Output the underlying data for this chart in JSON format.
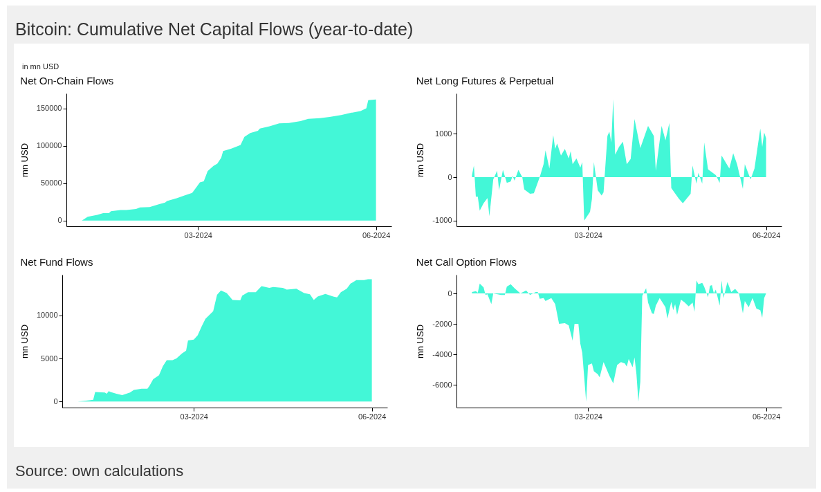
{
  "chart_data": [
    {
      "type": "other",
      "title": "Bitcoin: Cumulative Net Capital Flows (year-to-date)",
      "subtitle": "in mn USD",
      "annotations": [
        "Source: own calculations"
      ]
    },
    {
      "type": "area",
      "title": "Net On-Chain Flows",
      "ylabel": "mn USD",
      "color": "#43f7d7",
      "xlim": [
        "2023-12-24",
        "2024-06-09"
      ],
      "xticks": [
        {
          "value": "2024-03-01",
          "label": "03-2024"
        },
        {
          "value": "2024-06-01",
          "label": "06-2024"
        }
      ],
      "ylim": [
        -7700,
        170000
      ],
      "yticks": [
        0,
        50000,
        100000,
        150000
      ],
      "x": [
        "2024-01-01",
        "2024-01-04",
        "2024-01-09",
        "2024-01-12",
        "2024-01-15",
        "2024-01-16",
        "2024-01-21",
        "2024-01-24",
        "2024-01-29",
        "2024-01-31",
        "2024-02-05",
        "2024-02-10",
        "2024-02-13",
        "2024-02-14",
        "2024-02-18",
        "2024-02-23",
        "2024-02-27",
        "2024-02-29",
        "2024-03-02",
        "2024-03-04",
        "2024-03-06",
        "2024-03-09",
        "2024-03-11",
        "2024-03-13",
        "2024-03-14",
        "2024-03-18",
        "2024-03-21",
        "2024-03-23",
        "2024-03-25",
        "2024-03-28",
        "2024-04-01",
        "2024-04-02",
        "2024-04-07",
        "2024-04-12",
        "2024-04-17",
        "2024-04-23",
        "2024-04-27",
        "2024-05-03",
        "2024-05-08",
        "2024-05-14",
        "2024-05-19",
        "2024-05-24",
        "2024-05-27",
        "2024-05-28",
        "2024-06-01"
      ],
      "values": [
        0,
        5000,
        7500,
        10000,
        10000,
        12500,
        14000,
        14000,
        15500,
        17500,
        18000,
        22000,
        24000,
        26000,
        29000,
        33500,
        37000,
        44000,
        51000,
        52500,
        66000,
        73000,
        76000,
        84000,
        93000,
        96000,
        99000,
        101000,
        112000,
        117000,
        120000,
        123000,
        126000,
        130000,
        130500,
        133000,
        136000,
        137000,
        138500,
        141000,
        144000,
        146500,
        150000,
        161000,
        162000
      ]
    },
    {
      "type": "area",
      "title": "Net Long Futures & Perpetual",
      "ylabel": "mn USD",
      "color": "#43f7d7",
      "xlim": [
        "2023-12-24",
        "2024-06-09"
      ],
      "xticks": [
        {
          "value": "2024-03-01",
          "label": "03-2024"
        },
        {
          "value": "2024-06-01",
          "label": "06-2024"
        }
      ],
      "ylim": [
        -1130,
        1930
      ],
      "yticks": [
        -1000,
        0,
        1000
      ],
      "x": [
        "2024-01-01",
        "2024-01-02",
        "2024-01-03",
        "2024-01-04",
        "2024-01-05",
        "2024-01-07",
        "2024-01-09",
        "2024-01-10",
        "2024-01-12",
        "2024-01-14",
        "2024-01-15",
        "2024-01-17",
        "2024-01-19",
        "2024-01-21",
        "2024-01-22",
        "2024-01-23",
        "2024-01-25",
        "2024-01-27",
        "2024-01-28",
        "2024-01-31",
        "2024-02-02",
        "2024-02-05",
        "2024-02-07",
        "2024-02-08",
        "2024-02-10",
        "2024-02-12",
        "2024-02-13",
        "2024-02-14",
        "2024-02-16",
        "2024-02-18",
        "2024-02-20",
        "2024-02-21",
        "2024-02-22",
        "2024-02-24",
        "2024-02-26",
        "2024-02-27",
        "2024-02-28",
        "2024-03-02",
        "2024-03-03",
        "2024-03-04",
        "2024-03-06",
        "2024-03-08",
        "2024-03-09",
        "2024-03-11",
        "2024-03-12",
        "2024-03-13",
        "2024-03-14",
        "2024-03-15",
        "2024-03-17",
        "2024-03-19",
        "2024-03-21",
        "2024-03-23",
        "2024-03-25",
        "2024-03-28",
        "2024-04-01",
        "2024-04-04",
        "2024-04-05",
        "2024-04-08",
        "2024-04-10",
        "2024-04-12",
        "2024-04-13",
        "2024-04-17",
        "2024-04-19",
        "2024-04-23",
        "2024-04-24",
        "2024-04-26",
        "2024-04-27",
        "2024-04-29",
        "2024-04-30",
        "2024-05-02",
        "2024-05-06",
        "2024-05-08",
        "2024-05-09",
        "2024-05-13",
        "2024-05-15",
        "2024-05-17",
        "2024-05-20",
        "2024-05-21",
        "2024-05-24",
        "2024-05-26",
        "2024-05-29",
        "2024-05-30",
        "2024-05-31",
        "2024-06-01"
      ],
      "values": [
        50,
        270,
        -450,
        -450,
        -770,
        -600,
        -480,
        -900,
        -50,
        150,
        -300,
        170,
        -130,
        -100,
        30,
        -80,
        170,
        0,
        -280,
        -380,
        -370,
        0,
        300,
        620,
        200,
        970,
        650,
        780,
        500,
        650,
        430,
        600,
        300,
        430,
        220,
        350,
        -1000,
        -800,
        -500,
        350,
        -300,
        -420,
        -350,
        950,
        1050,
        800,
        1800,
        520,
        700,
        820,
        300,
        420,
        1340,
        670,
        1180,
        950,
        150,
        1180,
        850,
        1250,
        -250,
        -500,
        -600,
        -380,
        270,
        -150,
        100,
        -150,
        800,
        180,
        50,
        -130,
        500,
        200,
        550,
        300,
        -270,
        300,
        -50,
        200,
        1120,
        700,
        1030,
        900
      ]
    },
    {
      "type": "area",
      "title": "Net Fund Flows",
      "ylabel": "mn USD",
      "color": "#43f7d7",
      "xlim": [
        "2023-12-24",
        "2024-06-09"
      ],
      "xticks": [
        {
          "value": "2024-03-01",
          "label": "03-2024"
        },
        {
          "value": "2024-06-01",
          "label": "06-2024"
        }
      ],
      "ylim": [
        -700,
        14730
      ],
      "yticks": [
        0,
        5000,
        10000
      ],
      "x": [
        "2024-01-01",
        "2024-01-07",
        "2024-01-09",
        "2024-01-10",
        "2024-01-15",
        "2024-01-16",
        "2024-01-17",
        "2024-01-18",
        "2024-01-21",
        "2024-01-24",
        "2024-01-28",
        "2024-01-30",
        "2024-02-03",
        "2024-02-06",
        "2024-02-07",
        "2024-02-09",
        "2024-02-12",
        "2024-02-14",
        "2024-02-16",
        "2024-02-19",
        "2024-02-21",
        "2024-02-24",
        "2024-02-26",
        "2024-02-27",
        "2024-03-01",
        "2024-03-03",
        "2024-03-05",
        "2024-03-07",
        "2024-03-11",
        "2024-03-13",
        "2024-03-15",
        "2024-03-18",
        "2024-03-21",
        "2024-03-25",
        "2024-03-26",
        "2024-03-29",
        "2024-04-02",
        "2024-04-05",
        "2024-04-09",
        "2024-04-11",
        "2024-04-16",
        "2024-04-18",
        "2024-04-23",
        "2024-04-27",
        "2024-04-30",
        "2024-05-02",
        "2024-05-04",
        "2024-05-08",
        "2024-05-12",
        "2024-05-14",
        "2024-05-16",
        "2024-05-19",
        "2024-05-21",
        "2024-05-24",
        "2024-05-28",
        "2024-05-30",
        "2024-06-01"
      ],
      "values": [
        0,
        150,
        200,
        1100,
        1050,
        900,
        1200,
        1100,
        900,
        750,
        1050,
        1350,
        1500,
        1500,
        1800,
        2600,
        3050,
        4100,
        4800,
        4800,
        5000,
        5600,
        5900,
        7100,
        7200,
        7700,
        8700,
        9600,
        10500,
        12400,
        12900,
        12600,
        11800,
        11750,
        12300,
        12700,
        12700,
        13400,
        13200,
        13300,
        13200,
        13000,
        13100,
        12600,
        12450,
        11800,
        12200,
        12500,
        12200,
        12100,
        12700,
        13100,
        13700,
        14100,
        14100,
        14200,
        14200
      ]
    },
    {
      "type": "area",
      "title": "Net Call Option Flows",
      "ylabel": "mn USD",
      "color": "#43f7d7",
      "xlim": [
        "2023-12-24",
        "2024-06-09"
      ],
      "xticks": [
        {
          "value": "2024-03-01",
          "label": "03-2024"
        },
        {
          "value": "2024-06-01",
          "label": "06-2024"
        }
      ],
      "ylim": [
        -7490,
        1230
      ],
      "yticks": [
        -6000,
        -4000,
        -2000,
        0
      ],
      "x": [
        "2024-01-01",
        "2024-01-03",
        "2024-01-04",
        "2024-01-05",
        "2024-01-07",
        "2024-01-08",
        "2024-01-09",
        "2024-01-11",
        "2024-01-12",
        "2024-01-16",
        "2024-01-18",
        "2024-01-19",
        "2024-01-21",
        "2024-01-23",
        "2024-01-26",
        "2024-01-29",
        "2024-01-31",
        "2024-02-03",
        "2024-02-04",
        "2024-02-05",
        "2024-02-07",
        "2024-02-08",
        "2024-02-11",
        "2024-02-13",
        "2024-02-15",
        "2024-02-18",
        "2024-02-20",
        "2024-02-22",
        "2024-02-23",
        "2024-02-25",
        "2024-02-26",
        "2024-02-27",
        "2024-02-29",
        "2024-03-01",
        "2024-03-03",
        "2024-03-04",
        "2024-03-06",
        "2024-03-07",
        "2024-03-09",
        "2024-03-10",
        "2024-03-12",
        "2024-03-14",
        "2024-03-16",
        "2024-03-18",
        "2024-03-20",
        "2024-03-21",
        "2024-03-22",
        "2024-03-24",
        "2024-03-25",
        "2024-03-26",
        "2024-03-27",
        "2024-03-28",
        "2024-03-29",
        "2024-03-31",
        "2024-04-01",
        "2024-04-03",
        "2024-04-04",
        "2024-04-05",
        "2024-04-07",
        "2024-04-10",
        "2024-04-11",
        "2024-04-13",
        "2024-04-14",
        "2024-04-15",
        "2024-04-16",
        "2024-04-18",
        "2024-04-20",
        "2024-04-22",
        "2024-04-24",
        "2024-04-25",
        "2024-04-26",
        "2024-04-27",
        "2024-04-29",
        "2024-04-30",
        "2024-05-02",
        "2024-05-03",
        "2024-05-04",
        "2024-05-05",
        "2024-05-06",
        "2024-05-08",
        "2024-05-09",
        "2024-05-10",
        "2024-05-12",
        "2024-05-14",
        "2024-05-16",
        "2024-05-18",
        "2024-05-20",
        "2024-05-21",
        "2024-05-23",
        "2024-05-25",
        "2024-05-27",
        "2024-05-29",
        "2024-05-30",
        "2024-05-31",
        "2024-06-01"
      ],
      "values": [
        100,
        150,
        50,
        650,
        400,
        -100,
        -50,
        -700,
        0,
        -100,
        -100,
        450,
        600,
        350,
        0,
        200,
        -100,
        100,
        100,
        -350,
        -300,
        -500,
        -300,
        -700,
        -2000,
        -1950,
        -2100,
        -3100,
        -2000,
        -2000,
        -3300,
        -3900,
        -7100,
        -4700,
        -4600,
        -5100,
        -5300,
        -5500,
        -4500,
        -4800,
        -5400,
        -5900,
        -4700,
        -4500,
        -4600,
        -4800,
        -4300,
        -4850,
        -4200,
        -5300,
        -7100,
        -5800,
        -150,
        350,
        -600,
        -1300,
        -1350,
        -800,
        -300,
        -900,
        -1650,
        -550,
        -1100,
        -700,
        -1400,
        -400,
        -600,
        -850,
        -600,
        -1200,
        850,
        600,
        700,
        450,
        -250,
        500,
        550,
        0,
        250,
        -800,
        850,
        -300,
        750,
        100,
        300,
        0,
        -1300,
        -500,
        -900,
        -300,
        -1000,
        -1100,
        -1600,
        -300,
        0
      ]
    }
  ]
}
